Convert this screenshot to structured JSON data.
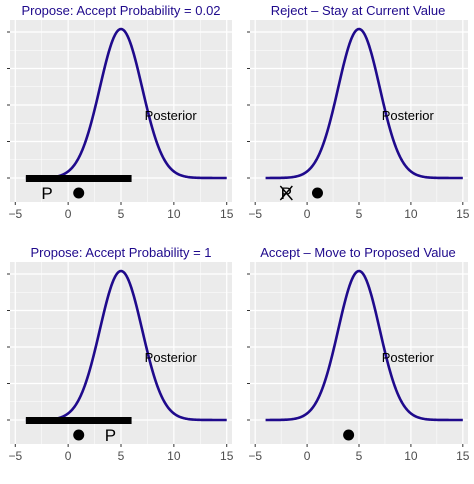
{
  "colors": {
    "panel_background": "#ebebeb",
    "grid": "#ffffff",
    "curve": "#1f0a8c",
    "marker": "#000000",
    "title_propose": "#1f0a8c",
    "title_other": "#1f0a8c"
  },
  "chart_data": [
    {
      "type": "line",
      "title": "Propose:  Accept Probability = 0.02",
      "xlim": [
        -5.5,
        15.5
      ],
      "x_ticks": [
        "-5",
        "0",
        "5",
        "10",
        "15"
      ],
      "y_ticks_count": 5,
      "grid": true,
      "series": [
        {
          "name": "Posterior",
          "distribution": "normal",
          "mean": 5,
          "sd": 2
        }
      ],
      "curve_label": {
        "text": "Posterior",
        "x": 9.7,
        "y_frac": 0.55
      },
      "proposal_bar": {
        "x_start": -4,
        "x_end": 6
      },
      "markers": [
        {
          "kind": "letter",
          "text": "P",
          "x": -2,
          "crossed": false
        },
        {
          "kind": "dot",
          "x": 1
        }
      ]
    },
    {
      "type": "line",
      "title": "Reject – Stay at Current Value",
      "xlim": [
        -5.5,
        15.5
      ],
      "x_ticks": [
        "-5",
        "0",
        "5",
        "10",
        "15"
      ],
      "y_ticks_count": 5,
      "grid": true,
      "series": [
        {
          "name": "Posterior",
          "distribution": "normal",
          "mean": 5,
          "sd": 2
        }
      ],
      "curve_label": {
        "text": "Posterior",
        "x": 9.7,
        "y_frac": 0.55
      },
      "proposal_bar": null,
      "markers": [
        {
          "kind": "letter",
          "text": "P",
          "x": -2,
          "crossed": true
        },
        {
          "kind": "dot",
          "x": 1
        }
      ]
    },
    {
      "type": "line",
      "title": "Propose: Accept Probability = 1",
      "xlim": [
        -5.5,
        15.5
      ],
      "x_ticks": [
        "-5",
        "0",
        "5",
        "10",
        "15"
      ],
      "y_ticks_count": 5,
      "grid": true,
      "series": [
        {
          "name": "Posterior",
          "distribution": "normal",
          "mean": 5,
          "sd": 2
        }
      ],
      "curve_label": {
        "text": "Posterior",
        "x": 9.7,
        "y_frac": 0.55
      },
      "proposal_bar": {
        "x_start": -4,
        "x_end": 6
      },
      "markers": [
        {
          "kind": "dot",
          "x": 1
        },
        {
          "kind": "letter",
          "text": "P",
          "x": 4,
          "crossed": false
        }
      ]
    },
    {
      "type": "line",
      "title": "Accept – Move to Proposed Value",
      "xlim": [
        -5.5,
        15.5
      ],
      "x_ticks": [
        "-5",
        "0",
        "5",
        "10",
        "15"
      ],
      "y_ticks_count": 5,
      "grid": true,
      "series": [
        {
          "name": "Posterior",
          "distribution": "normal",
          "mean": 5,
          "sd": 2
        }
      ],
      "curve_label": {
        "text": "Posterior",
        "x": 9.7,
        "y_frac": 0.55
      },
      "proposal_bar": null,
      "markers": [
        {
          "kind": "dot",
          "x": 4
        }
      ]
    }
  ]
}
